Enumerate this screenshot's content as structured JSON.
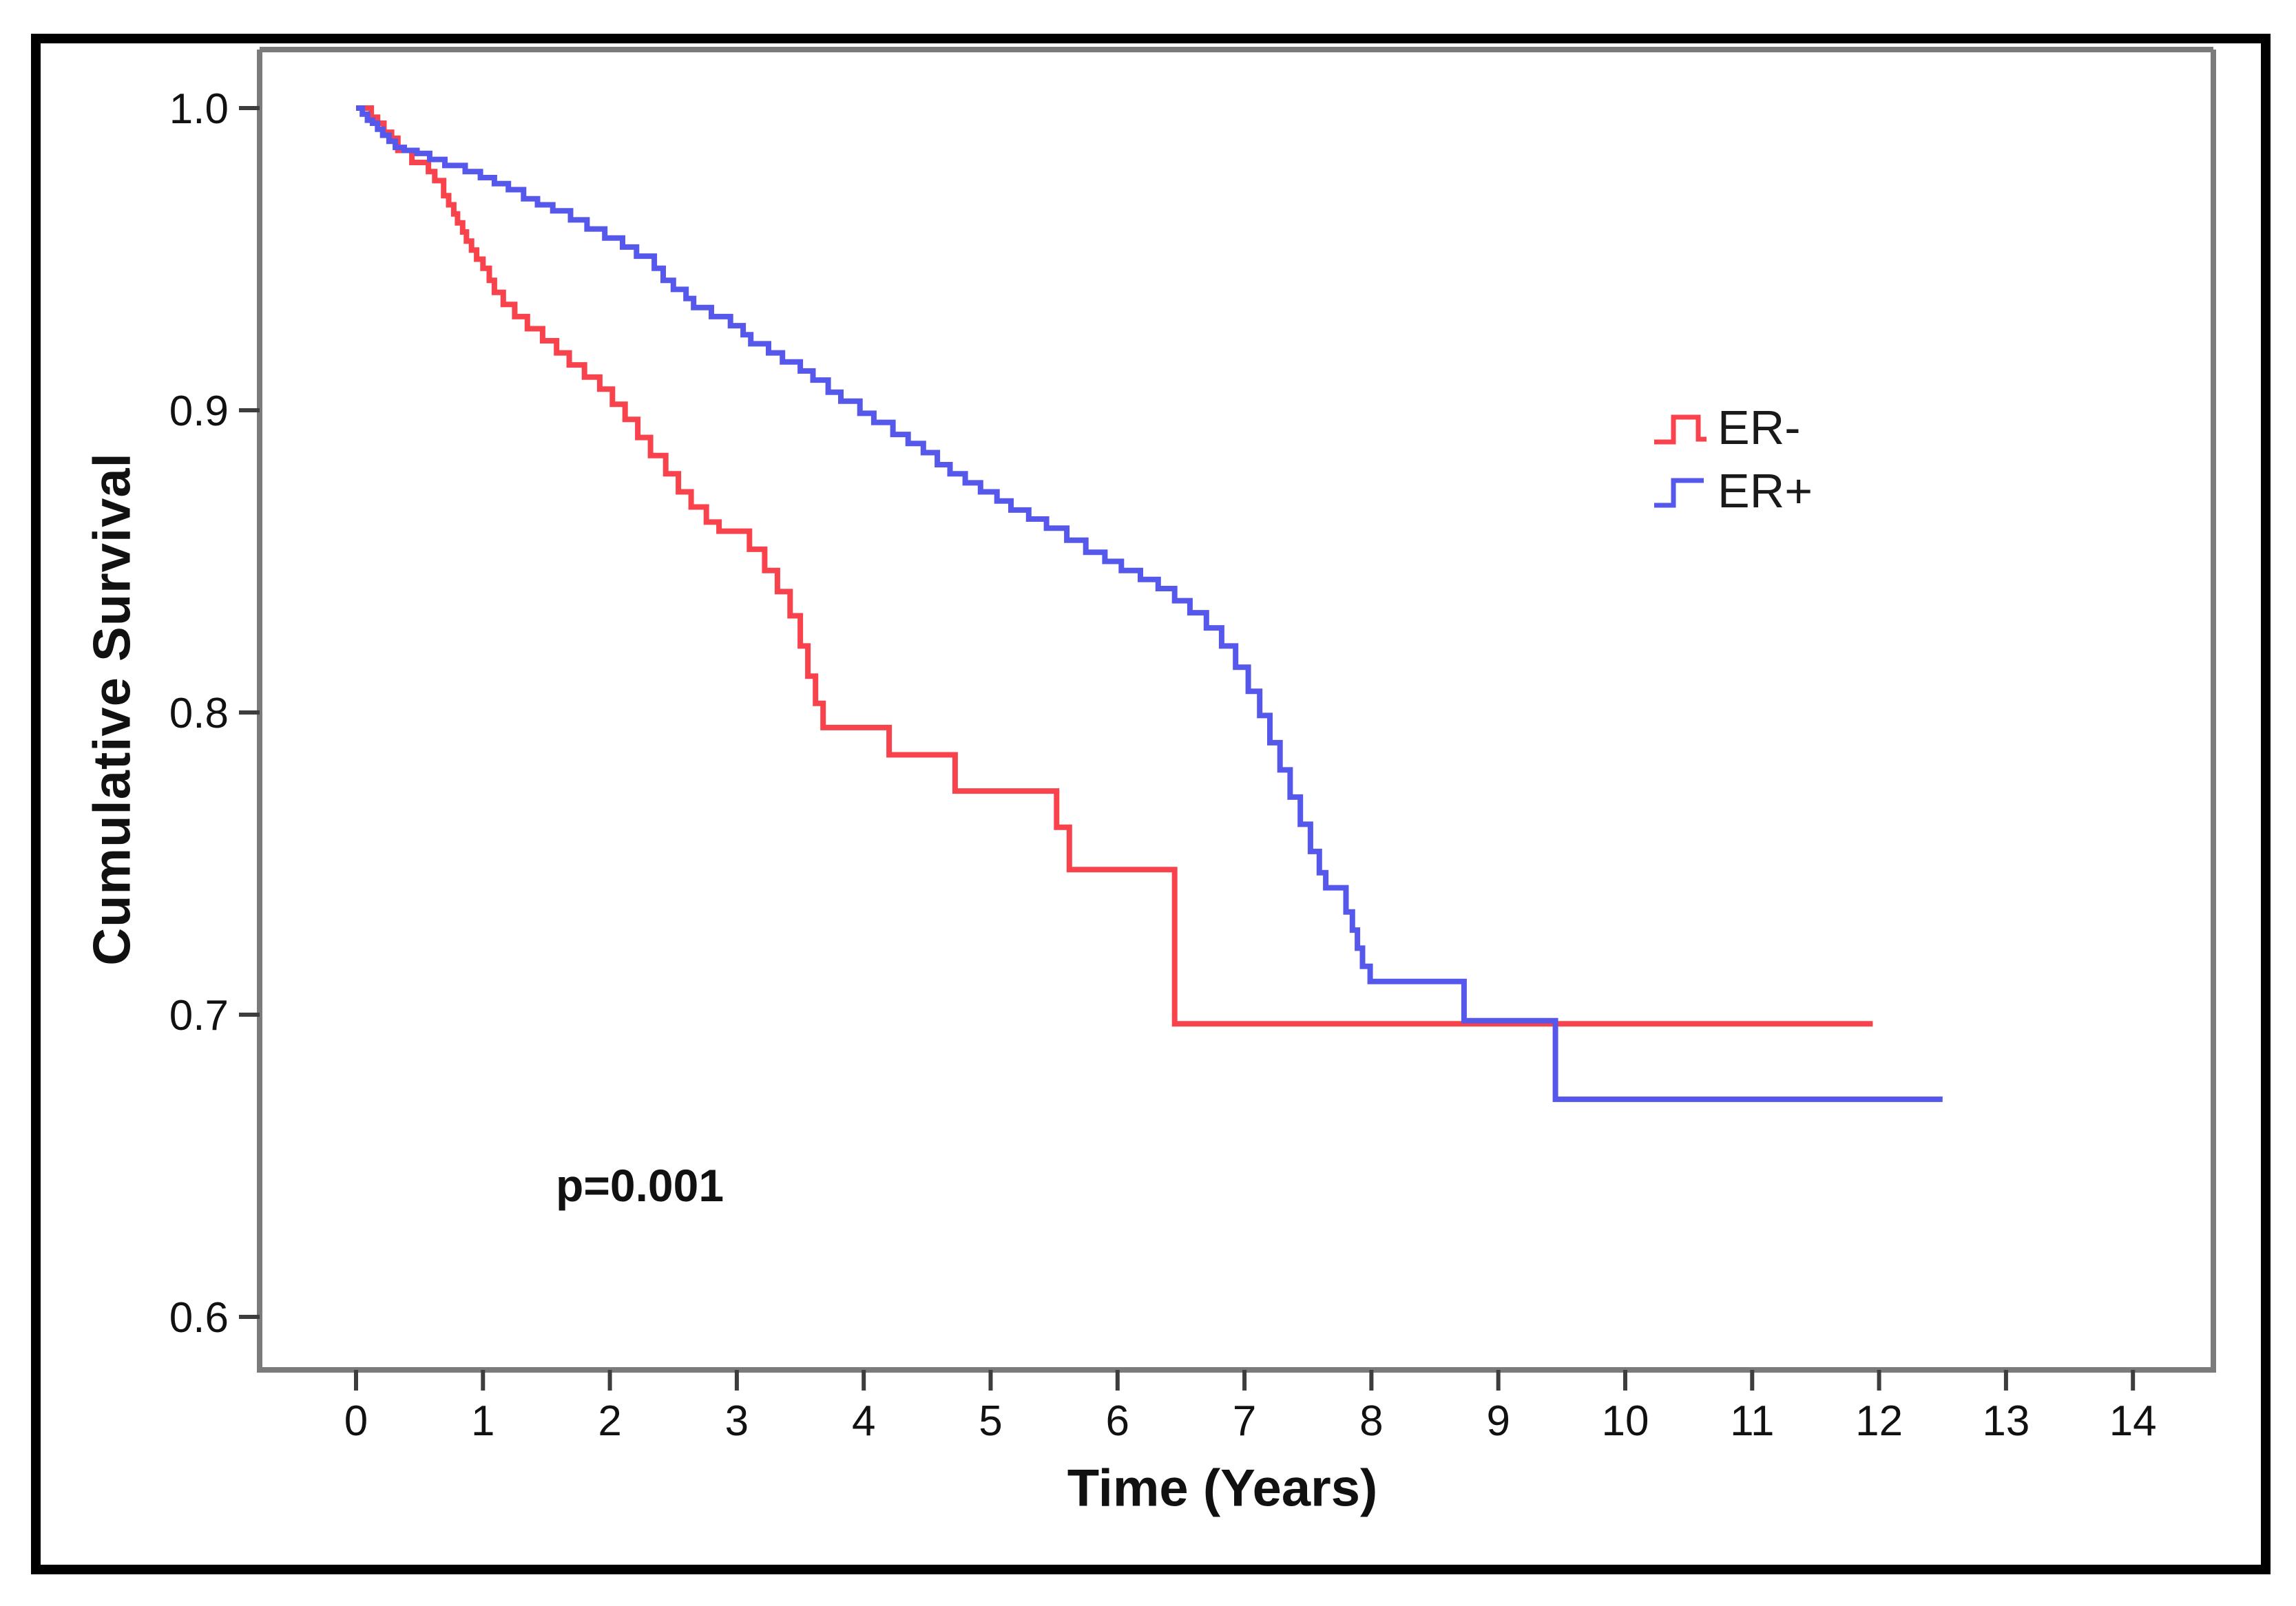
{
  "figure": {
    "background": "#ffffff",
    "border_color": "#000000",
    "spine_color": "#7b7b7b",
    "tick_color": "#3d3d3d",
    "text_color": "#111111"
  },
  "chart_data": {
    "type": "line",
    "subtype": "kaplan-meier-step",
    "title": "",
    "xlabel": "Time (Years)",
    "ylabel": "Cumulative Survival",
    "xlim": [
      -0.76,
      14.64
    ],
    "ylim": [
      0.583,
      1.019
    ],
    "grid": false,
    "legend_position": "inside-upper-right",
    "x_tick_labels": [
      "0",
      "1",
      "2",
      "3",
      "4",
      "5",
      "6",
      "7",
      "8",
      "9",
      "10",
      "11",
      "12",
      "13",
      "14"
    ],
    "x_tick_values": [
      0,
      1,
      2,
      3,
      4,
      5,
      6,
      7,
      8,
      9,
      10,
      11,
      12,
      13,
      14
    ],
    "y_tick_labels": [
      "1.0",
      "0.9",
      "0.8",
      "0.7",
      "0.6"
    ],
    "y_tick_values": [
      1.0,
      0.9,
      0.8,
      0.7,
      0.6
    ],
    "annotation": {
      "text": "p=0.001"
    },
    "series": [
      {
        "name": "ER-",
        "color": "#f8424c",
        "end_time": 11.95,
        "points": [
          [
            0,
            1.0
          ],
          [
            0.12,
            0.997
          ],
          [
            0.17,
            0.995
          ],
          [
            0.22,
            0.992
          ],
          [
            0.28,
            0.99
          ],
          [
            0.33,
            0.986
          ],
          [
            0.44,
            0.982
          ],
          [
            0.57,
            0.979
          ],
          [
            0.62,
            0.976
          ],
          [
            0.69,
            0.971
          ],
          [
            0.73,
            0.968
          ],
          [
            0.77,
            0.965
          ],
          [
            0.8,
            0.962
          ],
          [
            0.84,
            0.959
          ],
          [
            0.87,
            0.956
          ],
          [
            0.91,
            0.953
          ],
          [
            0.95,
            0.95
          ],
          [
            1.0,
            0.947
          ],
          [
            1.05,
            0.943
          ],
          [
            1.09,
            0.939
          ],
          [
            1.16,
            0.935
          ],
          [
            1.25,
            0.931
          ],
          [
            1.35,
            0.927
          ],
          [
            1.47,
            0.923
          ],
          [
            1.58,
            0.919
          ],
          [
            1.68,
            0.915
          ],
          [
            1.8,
            0.911
          ],
          [
            1.92,
            0.907
          ],
          [
            2.02,
            0.902
          ],
          [
            2.12,
            0.897
          ],
          [
            2.22,
            0.891
          ],
          [
            2.32,
            0.885
          ],
          [
            2.44,
            0.879
          ],
          [
            2.54,
            0.873
          ],
          [
            2.64,
            0.868
          ],
          [
            2.76,
            0.863
          ],
          [
            2.86,
            0.86
          ],
          [
            3.1,
            0.854
          ],
          [
            3.22,
            0.847
          ],
          [
            3.32,
            0.84
          ],
          [
            3.42,
            0.832
          ],
          [
            3.5,
            0.822
          ],
          [
            3.56,
            0.812
          ],
          [
            3.62,
            0.803
          ],
          [
            3.68,
            0.795
          ],
          [
            4.2,
            0.786
          ],
          [
            4.72,
            0.774
          ],
          [
            5.52,
            0.762
          ],
          [
            5.62,
            0.748
          ],
          [
            6.45,
            0.697
          ]
        ]
      },
      {
        "name": "ER+",
        "color": "#5558ea",
        "end_time": 12.5,
        "points": [
          [
            0,
            1.0
          ],
          [
            0.05,
            0.998
          ],
          [
            0.09,
            0.996
          ],
          [
            0.13,
            0.995
          ],
          [
            0.17,
            0.993
          ],
          [
            0.21,
            0.991
          ],
          [
            0.26,
            0.989
          ],
          [
            0.31,
            0.987
          ],
          [
            0.38,
            0.986
          ],
          [
            0.48,
            0.985
          ],
          [
            0.58,
            0.983
          ],
          [
            0.7,
            0.981
          ],
          [
            0.86,
            0.979
          ],
          [
            0.98,
            0.977
          ],
          [
            1.09,
            0.975
          ],
          [
            1.2,
            0.973
          ],
          [
            1.32,
            0.97
          ],
          [
            1.43,
            0.968
          ],
          [
            1.55,
            0.966
          ],
          [
            1.69,
            0.963
          ],
          [
            1.82,
            0.96
          ],
          [
            1.96,
            0.957
          ],
          [
            2.1,
            0.954
          ],
          [
            2.21,
            0.951
          ],
          [
            2.35,
            0.947
          ],
          [
            2.42,
            0.943
          ],
          [
            2.5,
            0.94
          ],
          [
            2.6,
            0.937
          ],
          [
            2.66,
            0.934
          ],
          [
            2.8,
            0.931
          ],
          [
            2.95,
            0.928
          ],
          [
            3.05,
            0.925
          ],
          [
            3.11,
            0.922
          ],
          [
            3.25,
            0.919
          ],
          [
            3.36,
            0.916
          ],
          [
            3.5,
            0.913
          ],
          [
            3.6,
            0.91
          ],
          [
            3.72,
            0.906
          ],
          [
            3.82,
            0.903
          ],
          [
            3.97,
            0.899
          ],
          [
            4.08,
            0.896
          ],
          [
            4.23,
            0.892
          ],
          [
            4.35,
            0.889
          ],
          [
            4.47,
            0.886
          ],
          [
            4.58,
            0.882
          ],
          [
            4.68,
            0.879
          ],
          [
            4.8,
            0.876
          ],
          [
            4.92,
            0.873
          ],
          [
            5.05,
            0.87
          ],
          [
            5.16,
            0.867
          ],
          [
            5.3,
            0.864
          ],
          [
            5.44,
            0.861
          ],
          [
            5.6,
            0.857
          ],
          [
            5.75,
            0.853
          ],
          [
            5.9,
            0.85
          ],
          [
            6.03,
            0.847
          ],
          [
            6.18,
            0.844
          ],
          [
            6.32,
            0.841
          ],
          [
            6.45,
            0.837
          ],
          [
            6.57,
            0.833
          ],
          [
            6.7,
            0.828
          ],
          [
            6.82,
            0.822
          ],
          [
            6.93,
            0.815
          ],
          [
            7.03,
            0.807
          ],
          [
            7.12,
            0.799
          ],
          [
            7.2,
            0.79
          ],
          [
            7.28,
            0.781
          ],
          [
            7.36,
            0.772
          ],
          [
            7.44,
            0.763
          ],
          [
            7.52,
            0.754
          ],
          [
            7.59,
            0.747
          ],
          [
            7.64,
            0.742
          ],
          [
            7.8,
            0.734
          ],
          [
            7.85,
            0.728
          ],
          [
            7.89,
            0.722
          ],
          [
            7.93,
            0.716
          ],
          [
            7.99,
            0.711
          ],
          [
            8.73,
            0.698
          ],
          [
            9.45,
            0.672
          ]
        ]
      }
    ]
  }
}
